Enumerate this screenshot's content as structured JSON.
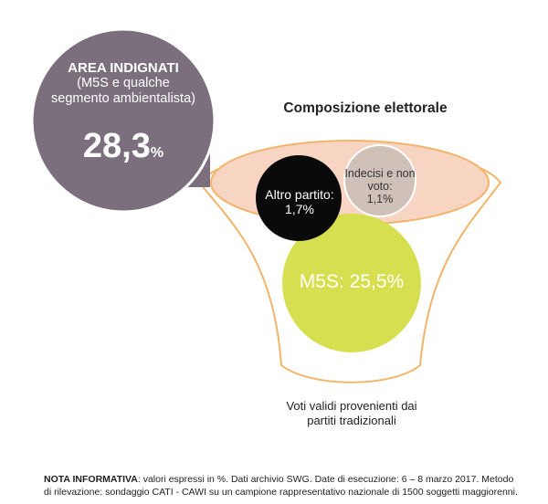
{
  "colors": {
    "area_bubble": "#7b6f7d",
    "funnel_stroke": "#f2b46a",
    "funnel_fill": "#f7d5c2",
    "altro_bubble": "#0a0a0a",
    "indecisi_bubble": "#cfc1b8",
    "m5s_bubble": "#d6df4f",
    "arrow": "#7b6f7d"
  },
  "area": {
    "title": "AREA INDIGNATI",
    "subtitle": "(M5S e qualche segmento ambientalista)",
    "value": "28,3",
    "unit": "%"
  },
  "composition": {
    "title": "Composizione elettorale",
    "items": [
      {
        "label": "Altro partito:",
        "value": "1,7%",
        "value_pct": 1.7
      },
      {
        "label": "Indecisi e non voto:",
        "value": "1,1%",
        "value_pct": 1.1
      },
      {
        "label": "M5S: 25,5%",
        "value_pct": 25.5
      }
    ]
  },
  "funnel_caption": "Voti validi provenienti dai partiti tradizionali",
  "note": {
    "label": "NOTA INFORMATIVA",
    "text": ": valori espressi in %. Dati archivio SWG. Date di esecuzione: 6 – 8 marzo 2017. Metodo di rilevazione: sondaggio CATI - CAWI su un campione rappresentativo nazionale di 1500 soggetti maggiorenni."
  }
}
